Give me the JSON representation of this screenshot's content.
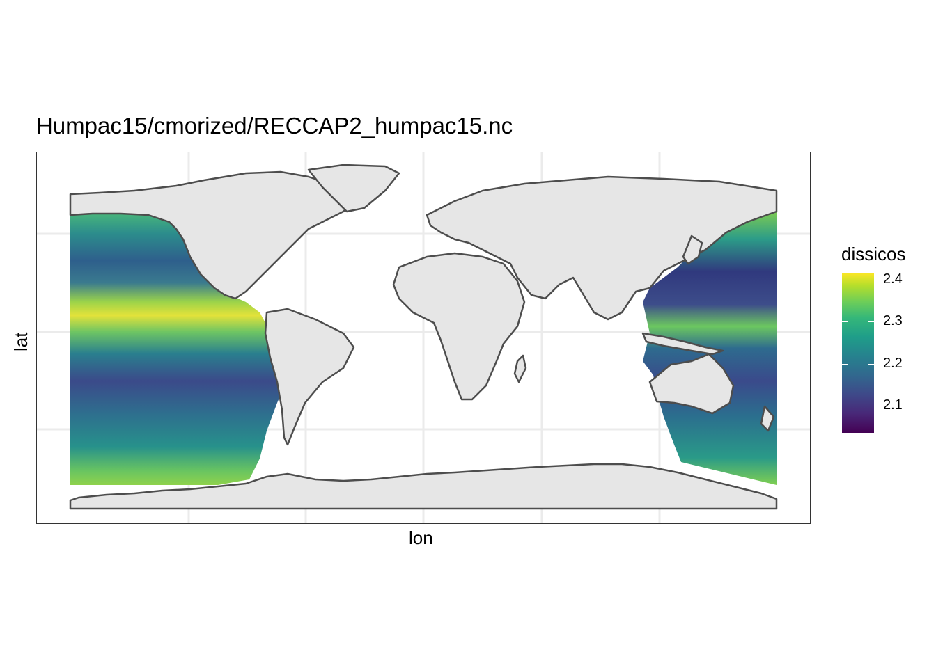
{
  "chart": {
    "title": "Humpac15/cmorized/RECCAP2_humpac15.nc",
    "xlabel": "lon",
    "ylabel": "lat"
  },
  "legend": {
    "title": "dissicos",
    "ticks": [
      "2.4",
      "2.3",
      "2.2",
      "2.1"
    ]
  },
  "chart_data": {
    "type": "heatmap",
    "variable": "dissicos",
    "colormap": "viridis",
    "color_range": [
      2.03,
      2.43
    ],
    "legend_ticks": [
      2.1,
      2.2,
      2.3,
      2.4
    ],
    "legend_placement": "right",
    "grid": true
  }
}
